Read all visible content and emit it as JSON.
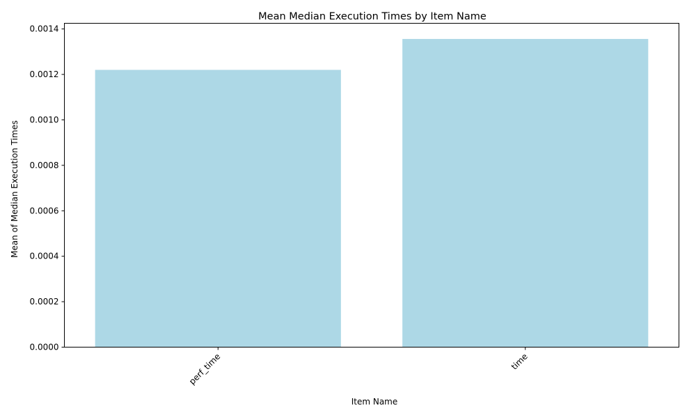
{
  "chart_data": {
    "type": "bar",
    "title": "Mean Median Execution Times by Item Name",
    "xlabel": "Item Name",
    "ylabel": "Mean of Median Execution Times",
    "categories": [
      "perf_time",
      "time"
    ],
    "values": [
      0.00122,
      0.001356
    ],
    "ylim": [
      0,
      0.001425
    ],
    "yticks": [
      "0.0000",
      "0.0002",
      "0.0004",
      "0.0006",
      "0.0008",
      "0.0010",
      "0.0012",
      "0.0014"
    ],
    "ytick_values": [
      0,
      0.0002,
      0.0004,
      0.0006,
      0.0008,
      0.001,
      0.0012,
      0.0014
    ],
    "bar_color": "#add8e6",
    "grid": false,
    "xtick_rotation": 45
  }
}
